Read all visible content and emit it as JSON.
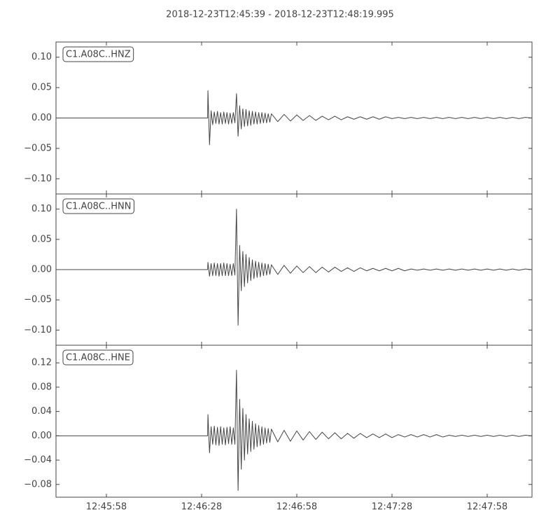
{
  "chart_data": [
    {
      "type": "line",
      "title": "2018-12-23T12:45:39  -  2018-12-23T12:48:19.995",
      "label": "C1.A08C..HNZ",
      "color": "#444444",
      "xlim": [
        42.12,
        192.12
      ],
      "ylim": [
        -0.125,
        0.125
      ],
      "yticks": [
        {
          "value": 0.1,
          "label": "0.10"
        },
        {
          "value": 0.05,
          "label": "0.05"
        },
        {
          "value": 0,
          "label": "0.00"
        },
        {
          "value": -0.05,
          "label": "−0.05"
        },
        {
          "value": -0.1,
          "label": "−0.10"
        }
      ],
      "x": [
        42.12,
        89.9,
        90,
        90.5,
        91,
        91.5,
        92,
        92.5,
        93,
        93.5,
        94,
        94.5,
        95,
        95.5,
        96,
        96.5,
        97,
        97.5,
        98,
        98.5,
        99,
        99.5,
        100,
        100.5,
        101,
        101.5,
        102,
        102.5,
        103,
        103.5,
        104,
        104.5,
        105,
        105.5,
        106,
        106.5,
        107,
        107.5,
        108,
        108.5,
        109,
        109.5,
        110,
        112,
        114,
        116,
        118,
        120,
        122,
        124,
        126,
        128,
        130,
        132,
        134,
        136,
        138,
        140,
        142,
        144,
        146,
        148,
        150,
        152,
        154,
        156,
        158,
        160,
        162,
        164,
        166,
        168,
        170,
        172,
        174,
        176,
        178,
        180,
        182,
        184,
        186,
        188,
        190,
        192
      ],
      "values": [
        0,
        0,
        0.045,
        -0.044,
        0.012,
        -0.011,
        0.01,
        -0.009,
        0.011,
        -0.01,
        0.009,
        -0.01,
        0.01,
        -0.009,
        0.009,
        -0.01,
        0.008,
        -0.009,
        0.009,
        -0.008,
        0.04,
        -0.03,
        0.02,
        -0.018,
        0.015,
        -0.014,
        0.014,
        -0.013,
        0.012,
        -0.012,
        0.011,
        -0.01,
        0.01,
        -0.01,
        0.009,
        -0.009,
        0.009,
        -0.008,
        0.008,
        -0.008,
        0.007,
        -0.007,
        0.007,
        -0.006,
        0.006,
        -0.005,
        0.005,
        -0.004,
        0.004,
        -0.004,
        0.003,
        -0.003,
        0.003,
        -0.003,
        0.002,
        -0.002,
        0.002,
        -0.002,
        0.002,
        -0.002,
        0.002,
        -0.001,
        0.001,
        -0.001,
        0.001,
        -0.001,
        0.001,
        -0.001,
        0.001,
        -0.001,
        0.001,
        -0.001,
        0.001,
        -0.001,
        0.001,
        -0.001,
        0.001,
        -0.001,
        0.001,
        -0.001,
        0.001,
        -0.001,
        0.001,
        0
      ]
    },
    {
      "type": "line",
      "label": "C1.A08C..HNN",
      "color": "#444444",
      "xlim": [
        42.12,
        192.12
      ],
      "ylim": [
        -0.125,
        0.125
      ],
      "yticks": [
        {
          "value": 0.1,
          "label": "0.10"
        },
        {
          "value": 0.05,
          "label": "0.05"
        },
        {
          "value": 0,
          "label": "0.00"
        },
        {
          "value": -0.05,
          "label": "−0.05"
        },
        {
          "value": -0.1,
          "label": "−0.10"
        }
      ],
      "x": [
        42.12,
        89.9,
        90,
        90.5,
        91,
        91.5,
        92,
        92.5,
        93,
        93.5,
        94,
        94.5,
        95,
        95.5,
        96,
        96.5,
        97,
        97.5,
        98,
        98.5,
        99,
        99.5,
        100,
        100.5,
        101,
        101.5,
        102,
        102.5,
        103,
        103.5,
        104,
        104.5,
        105,
        105.5,
        106,
        106.5,
        107,
        107.5,
        108,
        108.5,
        109,
        109.5,
        110,
        112,
        114,
        116,
        118,
        120,
        122,
        124,
        126,
        128,
        130,
        132,
        134,
        136,
        138,
        140,
        142,
        144,
        146,
        148,
        150,
        152,
        154,
        156,
        158,
        160,
        162,
        164,
        166,
        168,
        170,
        172,
        174,
        176,
        178,
        180,
        182,
        184,
        186,
        188,
        190,
        192
      ],
      "values": [
        0,
        0,
        0.012,
        -0.011,
        0.01,
        -0.01,
        0.011,
        -0.01,
        0.01,
        -0.011,
        0.01,
        -0.01,
        0.011,
        -0.01,
        0.01,
        -0.01,
        0.009,
        -0.01,
        0.01,
        -0.009,
        0.1,
        -0.092,
        0.04,
        -0.035,
        0.03,
        -0.028,
        0.025,
        -0.022,
        0.02,
        -0.018,
        0.016,
        -0.015,
        0.014,
        -0.013,
        0.012,
        -0.012,
        0.011,
        -0.01,
        0.01,
        -0.009,
        0.009,
        -0.008,
        0.008,
        -0.008,
        0.007,
        -0.006,
        0.006,
        -0.005,
        0.005,
        -0.005,
        0.004,
        -0.004,
        0.004,
        -0.003,
        0.003,
        -0.003,
        0.003,
        -0.002,
        0.002,
        -0.002,
        0.002,
        -0.002,
        0.002,
        -0.002,
        0.001,
        -0.001,
        0.001,
        -0.001,
        0.001,
        -0.001,
        0.001,
        -0.001,
        0.001,
        -0.001,
        0.001,
        -0.001,
        0.001,
        -0.001,
        0.001,
        -0.001,
        0.001,
        -0.001,
        0.001,
        0
      ]
    },
    {
      "type": "line",
      "label": "C1.A08C..HNE",
      "color": "#444444",
      "xlim": [
        42.12,
        192.12
      ],
      "ylim": [
        -0.101,
        0.149
      ],
      "yticks": [
        {
          "value": 0.12,
          "label": "0.12"
        },
        {
          "value": 0.08,
          "label": "0.08"
        },
        {
          "value": 0.04,
          "label": "0.04"
        },
        {
          "value": 0,
          "label": "0.00"
        },
        {
          "value": -0.04,
          "label": "−0.04"
        },
        {
          "value": -0.08,
          "label": "−0.08"
        }
      ],
      "xticks": [
        {
          "value": 58,
          "label": "12:45:58"
        },
        {
          "value": 88,
          "label": "12:46:28"
        },
        {
          "value": 118,
          "label": "12:46:58"
        },
        {
          "value": 148,
          "label": "12:47:28"
        },
        {
          "value": 178,
          "label": "12:47:58"
        }
      ],
      "x": [
        42.12,
        89.9,
        90,
        90.5,
        91,
        91.5,
        92,
        92.5,
        93,
        93.5,
        94,
        94.5,
        95,
        95.5,
        96,
        96.5,
        97,
        97.5,
        98,
        98.5,
        99,
        99.5,
        100,
        100.5,
        101,
        101.5,
        102,
        102.5,
        103,
        103.5,
        104,
        104.5,
        105,
        105.5,
        106,
        106.5,
        107,
        107.5,
        108,
        108.5,
        109,
        109.5,
        110,
        112,
        114,
        116,
        118,
        120,
        122,
        124,
        126,
        128,
        130,
        132,
        134,
        136,
        138,
        140,
        142,
        144,
        146,
        148,
        150,
        152,
        154,
        156,
        158,
        160,
        162,
        164,
        166,
        168,
        170,
        172,
        174,
        176,
        178,
        180,
        182,
        184,
        186,
        188,
        190,
        192
      ],
      "values": [
        0,
        0,
        0.035,
        -0.028,
        0.015,
        -0.014,
        0.016,
        -0.015,
        0.014,
        -0.016,
        0.015,
        -0.014,
        0.013,
        -0.015,
        0.014,
        -0.013,
        0.015,
        -0.014,
        0.013,
        -0.014,
        0.108,
        -0.09,
        0.06,
        -0.055,
        0.045,
        -0.04,
        0.035,
        -0.03,
        0.028,
        -0.026,
        0.024,
        -0.022,
        0.02,
        -0.018,
        0.017,
        -0.016,
        0.015,
        -0.014,
        0.013,
        -0.012,
        0.012,
        -0.011,
        0.011,
        -0.01,
        0.009,
        -0.009,
        0.008,
        -0.007,
        0.007,
        -0.006,
        0.006,
        -0.005,
        0.005,
        -0.005,
        0.004,
        -0.004,
        0.004,
        -0.003,
        0.003,
        -0.003,
        0.003,
        -0.003,
        0.002,
        -0.002,
        0.002,
        -0.002,
        0.002,
        -0.002,
        0.002,
        -0.002,
        0.001,
        -0.001,
        0.001,
        -0.001,
        0.001,
        -0.001,
        0.001,
        -0.001,
        0.001,
        -0.001,
        0.001,
        -0.001,
        0.001,
        0
      ]
    }
  ]
}
